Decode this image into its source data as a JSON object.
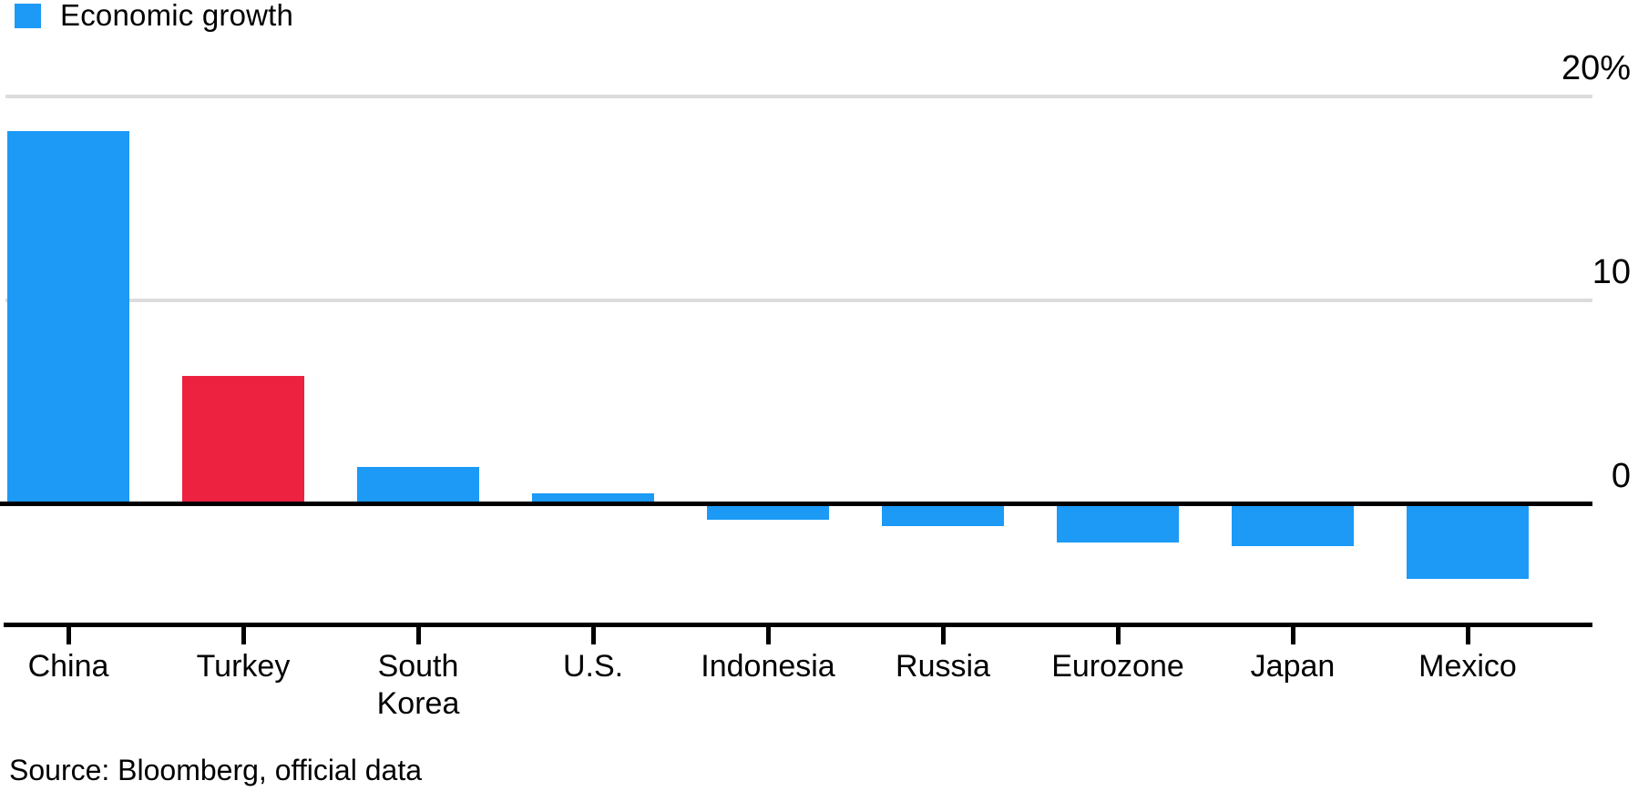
{
  "legend": {
    "label": "Economic growth"
  },
  "chart_data": {
    "type": "bar",
    "categories": [
      "China",
      "Turkey",
      "South Korea",
      "U.S.",
      "Indonesia",
      "Russia",
      "Eurozone",
      "Japan",
      "Mexico"
    ],
    "values": [
      18.3,
      6.3,
      1.8,
      0.5,
      -0.7,
      -1.0,
      -1.8,
      -2.0,
      -3.6
    ],
    "bar_colors": [
      "#1c9af6",
      "#ec2240",
      "#1c9af6",
      "#1c9af6",
      "#1c9af6",
      "#1c9af6",
      "#1c9af6",
      "#1c9af6",
      "#1c9af6"
    ],
    "series_name": "Economic growth",
    "unit": "%",
    "ylim": [
      -5,
      20
    ],
    "y_ticks": [
      {
        "text": "20%",
        "value": 20
      },
      {
        "text": "10",
        "value": 10
      },
      {
        "text": "0",
        "value": 0
      }
    ],
    "gridline_values": [
      20,
      10
    ],
    "zero_line": true,
    "grid": true,
    "legend_position": "top-left",
    "y_axis_side": "right",
    "title": "",
    "xlabel": "",
    "ylabel": ""
  },
  "source": {
    "text": "Source: Bloomberg, official data"
  },
  "colors": {
    "blue": "#1c9af6",
    "red": "#ec2240",
    "gridline": "#dcdcdc",
    "axis": "#000000",
    "text": "#000000"
  }
}
